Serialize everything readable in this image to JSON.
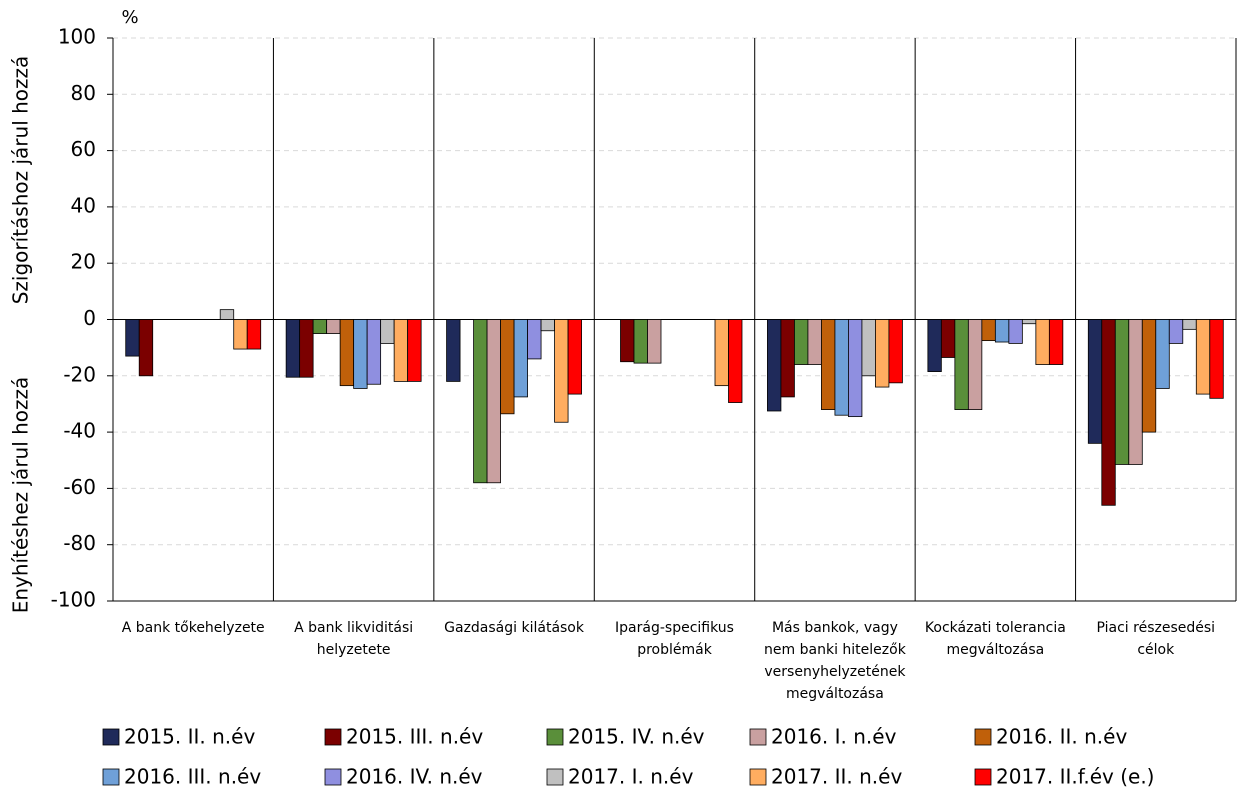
{
  "chart_data": {
    "type": "bar",
    "unit_label": "%",
    "y_label_upper": "Szigorításhoz járul hozzá",
    "y_label_lower": "Enyhítéshez járul hozzá",
    "categories": [
      [
        "A bank tőkehelyzete"
      ],
      [
        "A bank likviditási",
        "helyzetete"
      ],
      [
        "Gazdasági kilátások"
      ],
      [
        "Iparág-specifikus",
        "problémák"
      ],
      [
        "Más bankok, vagy",
        "nem banki hitelezők",
        "versenyhelyzetének",
        "megváltozása"
      ],
      [
        "Kockázati tolerancia",
        "megváltozása"
      ],
      [
        "Piaci részesedési",
        "célok"
      ]
    ],
    "series": [
      {
        "name": "2015. II. n.év",
        "color": "#1f2a5a",
        "values": [
          -13,
          -20.5,
          -22,
          0,
          -32.5,
          -18.5,
          -44
        ]
      },
      {
        "name": "2015. III. n.év",
        "color": "#7b0000",
        "values": [
          -20,
          -20.5,
          0,
          -15,
          -27.5,
          -13.5,
          -66
        ]
      },
      {
        "name": "2015. IV. n.év",
        "color": "#5a8f3a",
        "values": [
          0,
          -5,
          -58,
          -15.5,
          -16,
          -32,
          -51.5
        ]
      },
      {
        "name": "2016. I. n.év",
        "color": "#c9a0a0",
        "values": [
          0,
          -5,
          -58,
          -15.5,
          -16,
          -32,
          -51.5
        ]
      },
      {
        "name": "2016. II. n.év",
        "color": "#c0600a",
        "values": [
          0,
          -23.5,
          -33.5,
          0,
          -32,
          -7.5,
          -40
        ]
      },
      {
        "name": "2016. III. n.év",
        "color": "#6fa0d8",
        "values": [
          0,
          -24.5,
          -27.5,
          0,
          -34,
          -8,
          -24.5
        ]
      },
      {
        "name": "2016. IV. n.év",
        "color": "#8f8fe0",
        "values": [
          0,
          -23,
          -14,
          0,
          -34.5,
          -8.5,
          -8.5
        ]
      },
      {
        "name": "2017. I. n.év",
        "color": "#c0c0c0",
        "values": [
          3.5,
          -8.5,
          -4,
          0,
          -20,
          -1.5,
          -3.5
        ]
      },
      {
        "name": "2017. II. n.év",
        "color": "#ffad60",
        "values": [
          -10.5,
          -22,
          -36.5,
          -23.5,
          -24,
          -16,
          -26.5
        ]
      },
      {
        "name": "2017. II.f.év (e.)",
        "color": "#ff0000",
        "values": [
          -10.5,
          -22,
          -26.5,
          -29.5,
          -22.5,
          -16,
          -28
        ]
      }
    ],
    "ylim": [
      -100,
      100
    ],
    "yticks": [
      -100,
      -80,
      -60,
      -40,
      -20,
      0,
      20,
      40,
      60,
      80,
      100
    ],
    "grid": true
  }
}
